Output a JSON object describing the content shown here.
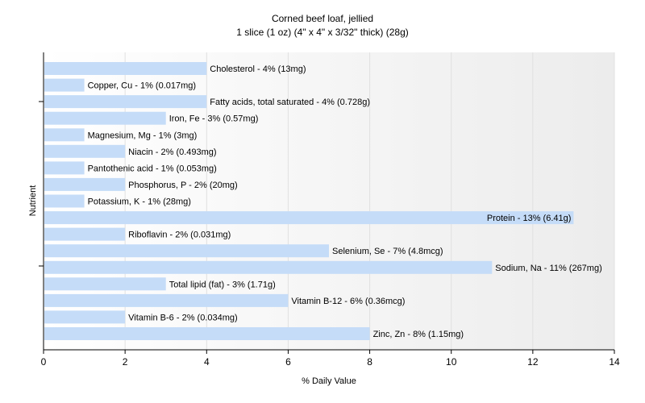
{
  "chart_data": {
    "type": "bar",
    "orientation": "horizontal",
    "title": "Corned beef loaf, jellied",
    "subtitle": "1 slice (1 oz) (4\" x 4\" x 3/32\" thick) (28g)",
    "xlabel": "% Daily Value",
    "ylabel": "Nutrient",
    "xlim": [
      0,
      14
    ],
    "xticks": [
      0,
      2,
      4,
      6,
      8,
      10,
      12,
      14
    ],
    "grid": true,
    "bar_color": "#c5dcf8",
    "grid_color": "#e0e0e0",
    "categories": [
      "Cholesterol",
      "Copper, Cu",
      "Fatty acids, total saturated",
      "Iron, Fe",
      "Magnesium, Mg",
      "Niacin",
      "Pantothenic acid",
      "Phosphorus, P",
      "Potassium, K",
      "Protein",
      "Riboflavin",
      "Selenium, Se",
      "Sodium, Na",
      "Total lipid (fat)",
      "Vitamin B-12",
      "Vitamin B-6",
      "Zinc, Zn"
    ],
    "values": [
      4,
      1,
      4,
      3,
      1,
      2,
      1,
      2,
      1,
      13,
      2,
      7,
      11,
      3,
      6,
      2,
      8
    ],
    "labels": [
      "Cholesterol - 4% (13mg)",
      "Copper, Cu - 1% (0.017mg)",
      "Fatty acids, total saturated - 4% (0.728g)",
      "Iron, Fe - 3% (0.57mg)",
      "Magnesium, Mg - 1% (3mg)",
      "Niacin - 2% (0.493mg)",
      "Pantothenic acid - 1% (0.053mg)",
      "Phosphorus, P - 2% (20mg)",
      "Potassium, K - 1% (28mg)",
      "Protein - 13% (6.41g)",
      "Riboflavin - 2% (0.031mg)",
      "Selenium, Se - 7% (4.8mcg)",
      "Sodium, Na - 11% (267mg)",
      "Total lipid (fat) - 3% (1.71g)",
      "Vitamin B-12 - 6% (0.36mcg)",
      "Vitamin B-6 - 2% (0.034mg)",
      "Zinc, Zn - 8% (1.15mg)"
    ]
  }
}
